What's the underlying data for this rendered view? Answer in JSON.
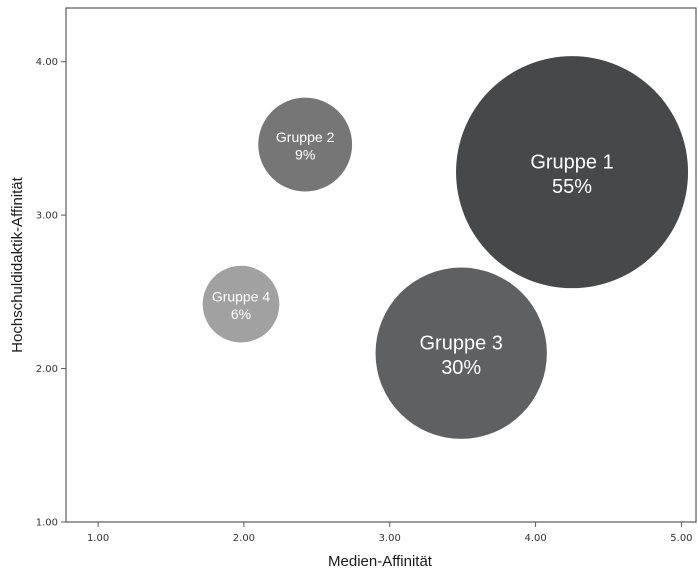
{
  "chart_data": {
    "type": "scatter",
    "xlabel": "Medien-Affinität",
    "ylabel": "Hochschuldidaktik-Affinität",
    "xlim": [
      0.78,
      5.1
    ],
    "ylim": [
      1.0,
      4.35
    ],
    "xticks": [
      "1.00",
      "2.00",
      "3.00",
      "4.00",
      "5.00"
    ],
    "yticks": [
      "1.00",
      "2.00",
      "3.00",
      "4.00"
    ],
    "xtick_values": [
      1,
      2,
      3,
      4,
      5
    ],
    "ytick_values": [
      1,
      2,
      3,
      4
    ],
    "grid": false,
    "legend": "none",
    "bubbles": [
      {
        "label": "Gruppe 1",
        "percent": "55%",
        "value": 55,
        "x": 4.25,
        "y": 3.28,
        "color": "#474849"
      },
      {
        "label": "Gruppe 2",
        "percent": "9%",
        "value": 9,
        "x": 2.42,
        "y": 3.46,
        "color": "#767677"
      },
      {
        "label": "Gruppe 3",
        "percent": "30%",
        "value": 30,
        "x": 3.49,
        "y": 2.1,
        "color": "#5f6061"
      },
      {
        "label": "Gruppe 4",
        "percent": "6%",
        "value": 6,
        "x": 1.98,
        "y": 2.42,
        "color": "#a1a1a2"
      }
    ]
  }
}
